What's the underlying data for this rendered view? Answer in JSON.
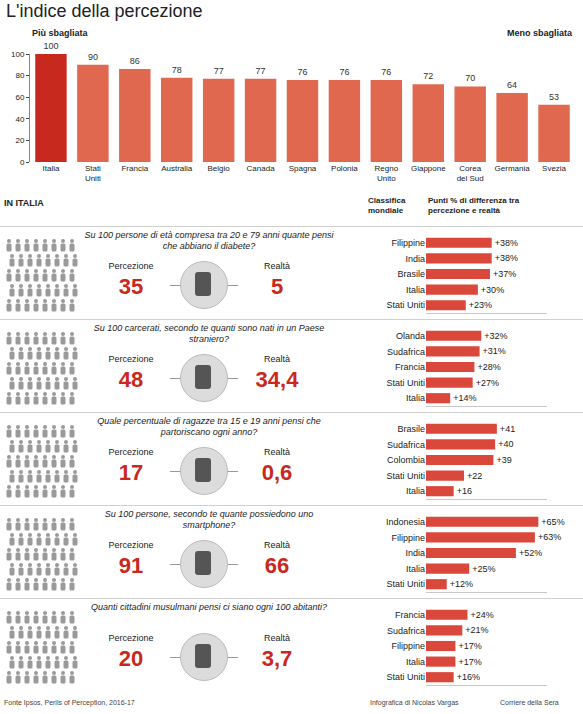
{
  "chart_data": [
    {
      "type": "bar",
      "title": "L'indice della percezione",
      "annotations": [
        "Più sbagliata",
        "Meno sbagliata"
      ],
      "categories": [
        "Italia",
        "Stati Uniti",
        "Francia",
        "Australia",
        "Belgio",
        "Canada",
        "Spagna",
        "Polonia",
        "Regno Unito",
        "Giappone",
        "Corea del Sud",
        "Germania",
        "Svezia"
      ],
      "values": [
        100,
        90,
        86,
        78,
        77,
        77,
        76,
        76,
        76,
        72,
        70,
        64,
        53
      ],
      "colors": [
        "#c7291e",
        "#e0684f",
        "#e0684f",
        "#e0684f",
        "#e0684f",
        "#e0684f",
        "#e0684f",
        "#e0684f",
        "#e0684f",
        "#e0684f",
        "#e0684f",
        "#e0684f",
        "#e0684f"
      ],
      "ylim": [
        0,
        100
      ],
      "yticks": [
        0,
        20,
        40,
        60,
        80,
        100
      ],
      "grid": false,
      "data_labels": true
    },
    {
      "type": "bar",
      "orientation": "horizontal",
      "categories": [
        "Filippine",
        "India",
        "Brasile",
        "Italia",
        "Stati Uniti"
      ],
      "values": [
        38,
        38,
        37,
        30,
        23
      ],
      "value_labels": [
        "+38%",
        "+38%",
        "+37%",
        "+30%",
        "+23%"
      ],
      "color": "#d9483a",
      "xlim": [
        0,
        70
      ],
      "data_labels": true,
      "tick_labels": "y"
    },
    {
      "type": "bar",
      "orientation": "horizontal",
      "categories": [
        "Olanda",
        "Sudafrica",
        "Francia",
        "Stati Uniti",
        "Italia"
      ],
      "values": [
        32,
        31,
        28,
        27,
        14
      ],
      "value_labels": [
        "+32%",
        "+31%",
        "+28%",
        "+27%",
        "+14%"
      ],
      "color": "#d9483a",
      "xlim": [
        0,
        70
      ],
      "data_labels": true,
      "tick_labels": "y"
    },
    {
      "type": "bar",
      "orientation": "horizontal",
      "categories": [
        "Brasile",
        "Sudafrica",
        "Colombia",
        "Stati Uniti",
        "Italia"
      ],
      "values": [
        41,
        40,
        39,
        22,
        16
      ],
      "value_labels": [
        "+41",
        "+40",
        "+39",
        "+22",
        "+16"
      ],
      "color": "#d9483a",
      "xlim": [
        0,
        70
      ],
      "data_labels": true,
      "tick_labels": "y"
    },
    {
      "type": "bar",
      "orientation": "horizontal",
      "categories": [
        "Indonesia",
        "Filippine",
        "India",
        "Italia",
        "Stati Uniti"
      ],
      "values": [
        65,
        63,
        52,
        25,
        12
      ],
      "value_labels": [
        "+65%",
        "+63%",
        "+52%",
        "+25%",
        "+12%"
      ],
      "color": "#d9483a",
      "xlim": [
        0,
        70
      ],
      "data_labels": true,
      "tick_labels": "y"
    },
    {
      "type": "bar",
      "orientation": "horizontal",
      "categories": [
        "Francia",
        "Sudafrica",
        "Filippine",
        "Italia",
        "Stati Uniti"
      ],
      "values": [
        24,
        21,
        17,
        17,
        16
      ],
      "value_labels": [
        "+24%",
        "+21%",
        "+17%",
        "+17%",
        "+16%"
      ],
      "color": "#d9483a",
      "xlim": [
        0,
        70
      ],
      "data_labels": true,
      "tick_labels": "y"
    }
  ],
  "section": {
    "label": "IN ITALIA",
    "column_heads": [
      "Classifica mondiale",
      "Punti % di differenza tra percezione e realtà"
    ]
  },
  "panels": [
    {
      "question": "Su 100 persone di età compresa tra 20 e 79 anni quante pensi che abbiano il diabete?",
      "perception_label": "Percezione",
      "perception": 35,
      "reality_label": "Realtà",
      "reality": 5
    },
    {
      "question": "Su 100 carcerati, secondo te quanti sono nati in un Paese straniero?",
      "perception_label": "Percezione",
      "perception": 48,
      "reality_label": "Realtà",
      "reality": {
        "value": 34.4,
        "label": "34,4"
      }
    },
    {
      "question": "Quale percentuale di ragazze tra 15 e 19 anni pensi che partoriscano ogni anno?",
      "perception_label": "Percezione",
      "perception": 17,
      "reality_label": "Realtà",
      "reality": {
        "value": 0.6,
        "label": "0,6"
      }
    },
    {
      "question": "Su 100 persone, secondo te quante possiedono uno smartphone?",
      "perception_label": "Percezione",
      "perception": 91,
      "reality_label": "Realtà",
      "reality": 66
    },
    {
      "question": "Quanti cittadini musulmani pensi ci siano ogni 100 abitanti?",
      "perception_label": "Percezione",
      "perception": 20,
      "reality_label": "Realtà",
      "reality": {
        "value": 3.7,
        "label": "3,7"
      }
    }
  ],
  "footer": {
    "source": "Fonte Ipsos, Perils of Perception, 2016-17",
    "credit": "Infografica di Nicolas Vargas",
    "publisher": "Corriere della Sera"
  }
}
